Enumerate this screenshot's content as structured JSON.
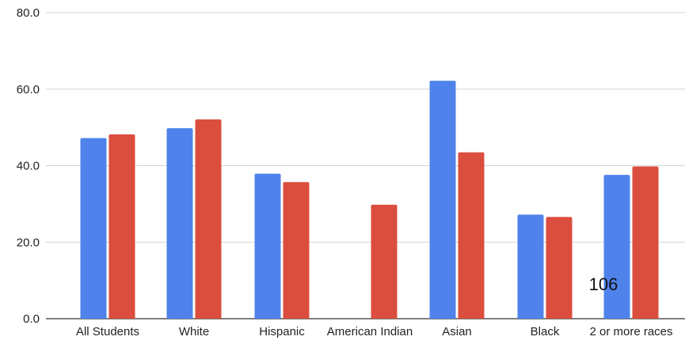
{
  "chart_data": {
    "type": "bar",
    "categories": [
      "All Students",
      "White",
      "Hispanic",
      "American Indian",
      "Asian",
      "Black",
      "2 or more races"
    ],
    "series": [
      {
        "values": [
          47.2,
          49.8,
          37.9,
          null,
          62.2,
          27.2,
          37.6
        ],
        "color": "#4f83eb"
      },
      {
        "values": [
          48.2,
          52.1,
          35.7,
          29.8,
          43.5,
          26.6,
          39.8
        ],
        "color": "#db4d3d"
      }
    ],
    "ylim": [
      0,
      80
    ],
    "yticks": [
      "0.0",
      "20.0",
      "40.0",
      "60.0",
      "80.0"
    ],
    "ytick_values": [
      0,
      20,
      40,
      60,
      80
    ],
    "grid": true,
    "legend": "none",
    "annotation": "106"
  }
}
